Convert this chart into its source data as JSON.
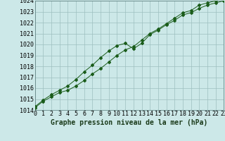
{
  "title": "Graphe pression niveau de la mer (hPa)",
  "x_hours": [
    0,
    1,
    2,
    3,
    4,
    5,
    6,
    7,
    8,
    9,
    10,
    11,
    12,
    13,
    14,
    15,
    16,
    17,
    18,
    19,
    20,
    21,
    22,
    23
  ],
  "series1": [
    1014.2,
    1014.8,
    1015.2,
    1015.6,
    1015.8,
    1016.2,
    1016.7,
    1017.3,
    1017.8,
    1018.4,
    1019.0,
    1019.5,
    1019.8,
    1020.4,
    1021.0,
    1021.4,
    1021.9,
    1022.4,
    1022.9,
    1023.1,
    1023.6,
    1023.8,
    1024.0,
    1024.2
  ],
  "series2": [
    1014.3,
    1014.9,
    1015.4,
    1015.8,
    1016.2,
    1016.8,
    1017.5,
    1018.1,
    1018.8,
    1019.4,
    1019.9,
    1020.1,
    1019.6,
    1020.1,
    1020.9,
    1021.3,
    1021.8,
    1022.2,
    1022.7,
    1022.9,
    1023.3,
    1023.6,
    1023.8,
    1024.0
  ],
  "line_color": "#1a5c1a",
  "bg_color": "#cce8e8",
  "grid_color": "#9dbfbf",
  "ylim": [
    1014,
    1024
  ],
  "yticks": [
    1014,
    1015,
    1016,
    1017,
    1018,
    1019,
    1020,
    1021,
    1022,
    1023,
    1024
  ],
  "tick_fontsize": 6.0,
  "title_fontsize": 7.0,
  "figsize": [
    3.2,
    2.0
  ],
  "dpi": 100
}
